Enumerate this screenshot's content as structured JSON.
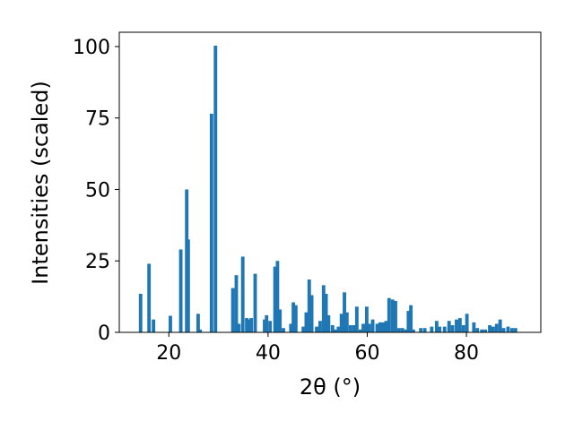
{
  "chart_data": {
    "type": "bar",
    "title": "",
    "xlabel": "2θ (°)",
    "ylabel": "Intensities (scaled)",
    "xlim": [
      10,
      95
    ],
    "ylim": [
      0,
      105
    ],
    "xticks": [
      20,
      40,
      60,
      80
    ],
    "yticks": [
      0,
      25,
      50,
      75,
      100
    ],
    "grid": false,
    "bar_color": "#1f77b4",
    "bar_width": 0.7,
    "x": [
      14.3,
      16.0,
      16.9,
      20.3,
      22.4,
      23.6,
      23.9,
      25.9,
      26.3,
      28.6,
      29.4,
      32.9,
      33.6,
      34.1,
      34.9,
      35.7,
      36.1,
      36.6,
      37.4,
      39.3,
      39.7,
      40.4,
      41.4,
      41.9,
      42.4,
      43.1,
      44.6,
      45.1,
      45.6,
      47.1,
      47.7,
      48.3,
      48.8,
      49.8,
      50.5,
      51.2,
      51.7,
      52.2,
      53.0,
      53.6,
      54.2,
      54.8,
      55.4,
      55.9,
      56.6,
      57.3,
      57.9,
      58.6,
      59.2,
      59.9,
      60.4,
      61.1,
      62.0,
      62.6,
      63.2,
      63.8,
      64.4,
      65.1,
      65.7,
      66.4,
      67.1,
      67.8,
      68.3,
      68.8,
      69.3,
      70.8,
      71.6,
      73.0,
      74.0,
      74.6,
      75.6,
      76.5,
      77.2,
      78.0,
      78.7,
      79.4,
      80.1,
      81.5,
      82.2,
      83.1,
      83.8,
      84.7,
      85.4,
      86.1,
      86.8,
      87.5,
      88.4,
      89.2,
      89.9
    ],
    "values": [
      13.5,
      24.0,
      4.5,
      5.8,
      29.0,
      50.0,
      32.5,
      6.5,
      1.0,
      76.5,
      100.3,
      15.5,
      20.0,
      3.0,
      26.5,
      5.0,
      4.5,
      5.0,
      20.5,
      4.5,
      6.0,
      4.0,
      23.0,
      25.0,
      8.0,
      1.5,
      3.0,
      10.5,
      9.5,
      2.0,
      7.0,
      18.5,
      13.0,
      2.0,
      4.0,
      16.5,
      13.5,
      6.0,
      2.5,
      1.0,
      2.0,
      6.5,
      14.0,
      7.0,
      2.5,
      2.5,
      9.0,
      1.0,
      3.0,
      9.0,
      3.0,
      4.5,
      3.0,
      3.5,
      3.5,
      4.0,
      12.0,
      11.5,
      11.0,
      1.5,
      1.5,
      1.0,
      7.5,
      9.5,
      1.0,
      1.5,
      1.5,
      2.0,
      4.0,
      2.0,
      2.0,
      4.0,
      2.5,
      4.5,
      5.0,
      2.5,
      6.5,
      3.5,
      1.5,
      1.0,
      1.0,
      2.5,
      2.0,
      3.0,
      4.5,
      1.5,
      2.0,
      1.5,
      1.5
    ]
  }
}
